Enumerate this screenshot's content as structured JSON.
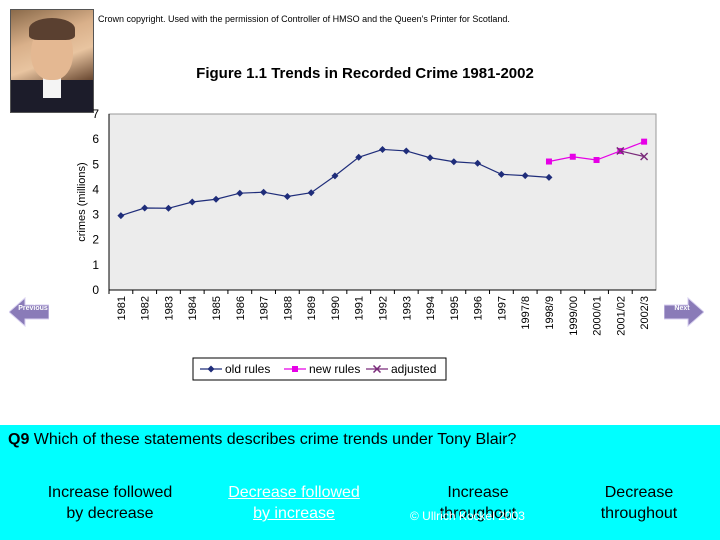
{
  "header": {
    "credit": "Crown copyright. Used with the permission of Controller of HMSO and the Queen's Printer for Scotland."
  },
  "chart_data": {
    "type": "line",
    "title": "Figure 1.1 Trends in Recorded Crime 1981-2002",
    "xlabel": "",
    "ylabel": "crimes (millions)",
    "ylim": [
      0,
      7
    ],
    "yticks": [
      "0",
      "1",
      "2",
      "3",
      "4",
      "5",
      "6",
      "7"
    ],
    "categories": [
      "1981",
      "1982",
      "1983",
      "1984",
      "1985",
      "1986",
      "1987",
      "1988",
      "1989",
      "1990",
      "1991",
      "1992",
      "1993",
      "1994",
      "1995",
      "1996",
      "1997",
      "1997/8",
      "1998/9",
      "1999/00",
      "2000/01",
      "2001/02",
      "2002/3"
    ],
    "series": [
      {
        "name": "old rules",
        "color": "#1f2d7a",
        "marker": "diamond",
        "values": [
          2.96,
          3.26,
          3.25,
          3.5,
          3.61,
          3.85,
          3.89,
          3.72,
          3.87,
          4.54,
          5.28,
          5.59,
          5.53,
          5.26,
          5.1,
          5.04,
          4.6,
          4.55,
          4.48,
          null,
          null,
          null,
          null
        ]
      },
      {
        "name": "new rules",
        "color": "#e600e6",
        "marker": "square",
        "values": [
          null,
          null,
          null,
          null,
          null,
          null,
          null,
          null,
          null,
          null,
          null,
          null,
          null,
          null,
          null,
          null,
          null,
          null,
          5.11,
          5.3,
          5.17,
          5.53,
          5.9
        ]
      },
      {
        "name": "adjusted",
        "color": "#7a2a7a",
        "marker": "x",
        "values": [
          null,
          null,
          null,
          null,
          null,
          null,
          null,
          null,
          null,
          null,
          null,
          null,
          null,
          null,
          null,
          null,
          null,
          null,
          null,
          null,
          null,
          5.53,
          5.31
        ]
      }
    ],
    "grid": false,
    "legend": "bottom"
  },
  "nav": {
    "previous_label": "Previous",
    "next_label": "Next"
  },
  "quiz": {
    "number": "Q9",
    "question": "Which of these statements describes crime trends under Tony Blair?",
    "options": [
      {
        "line1": "Increase followed",
        "line2": "by decrease"
      },
      {
        "line1": "Decrease followed",
        "line2": "by increase"
      },
      {
        "line1": "Increase",
        "line2": "throughout"
      },
      {
        "line1": "Decrease",
        "line2": "throughout"
      }
    ],
    "copyright": "© Ullrich Kockel 2003"
  },
  "colors": {
    "panel": "#00ffff",
    "plot_bg": "#ececec",
    "nav_button": "#8a7bb8"
  }
}
